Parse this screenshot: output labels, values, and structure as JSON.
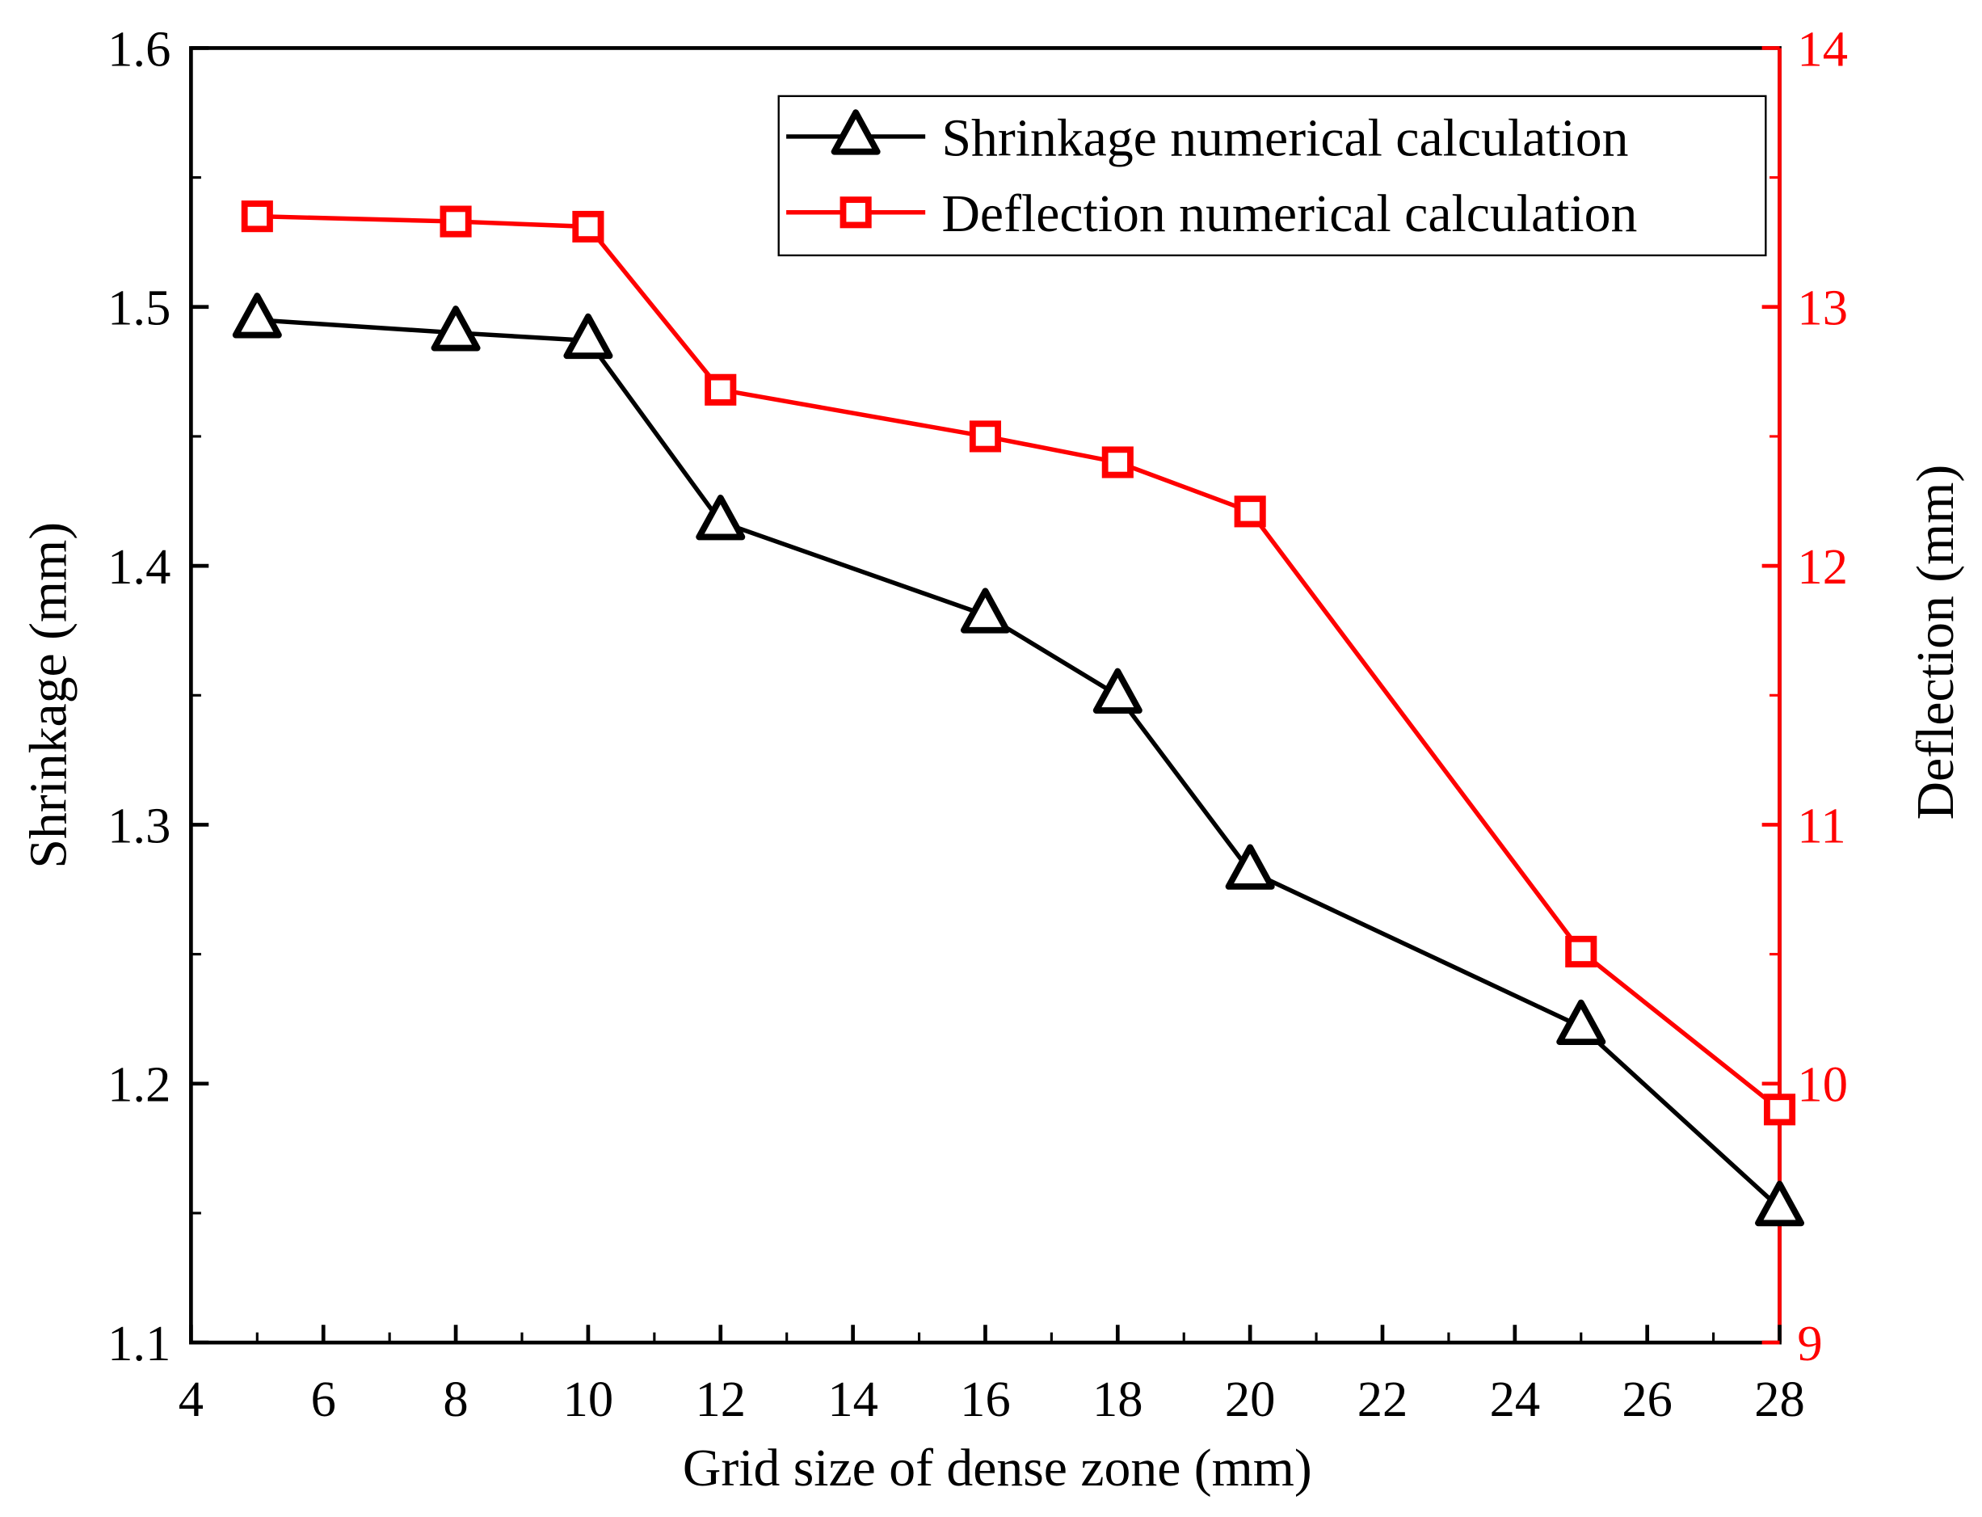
{
  "chart_data": {
    "type": "line",
    "xlabel": "Grid size of dense zone (mm)",
    "ylabel": "Shrinkage (mm)",
    "y2label": "Deflection (mm)",
    "xlim": [
      4,
      28
    ],
    "ylim": [
      1.1,
      1.6
    ],
    "y2lim": [
      9,
      14
    ],
    "xticks": [
      "4",
      "6",
      "8",
      "10",
      "12",
      "14",
      "16",
      "18",
      "20",
      "22",
      "24",
      "26",
      "28"
    ],
    "yticks": [
      "1.1",
      "1.2",
      "1.3",
      "1.4",
      "1.5",
      "1.6"
    ],
    "y2ticks": [
      "9",
      "10",
      "11",
      "12",
      "13",
      "14"
    ],
    "legend_position": "top-right",
    "colors": {
      "shrinkage": "#000000",
      "deflection": "#ff0000"
    },
    "x": [
      5,
      8,
      10,
      12,
      16,
      18,
      20,
      25,
      28
    ],
    "series": [
      {
        "name": "Shrinkage numerical calculation",
        "axis": "left",
        "marker": "triangle",
        "values": [
          1.495,
          1.49,
          1.487,
          1.417,
          1.381,
          1.35,
          1.282,
          1.222,
          1.152
        ]
      },
      {
        "name": "Deflection numerical calculation",
        "axis": "right",
        "marker": "square",
        "values": [
          13.35,
          13.33,
          13.31,
          12.68,
          12.5,
          12.4,
          12.21,
          10.51,
          9.9
        ]
      }
    ]
  }
}
